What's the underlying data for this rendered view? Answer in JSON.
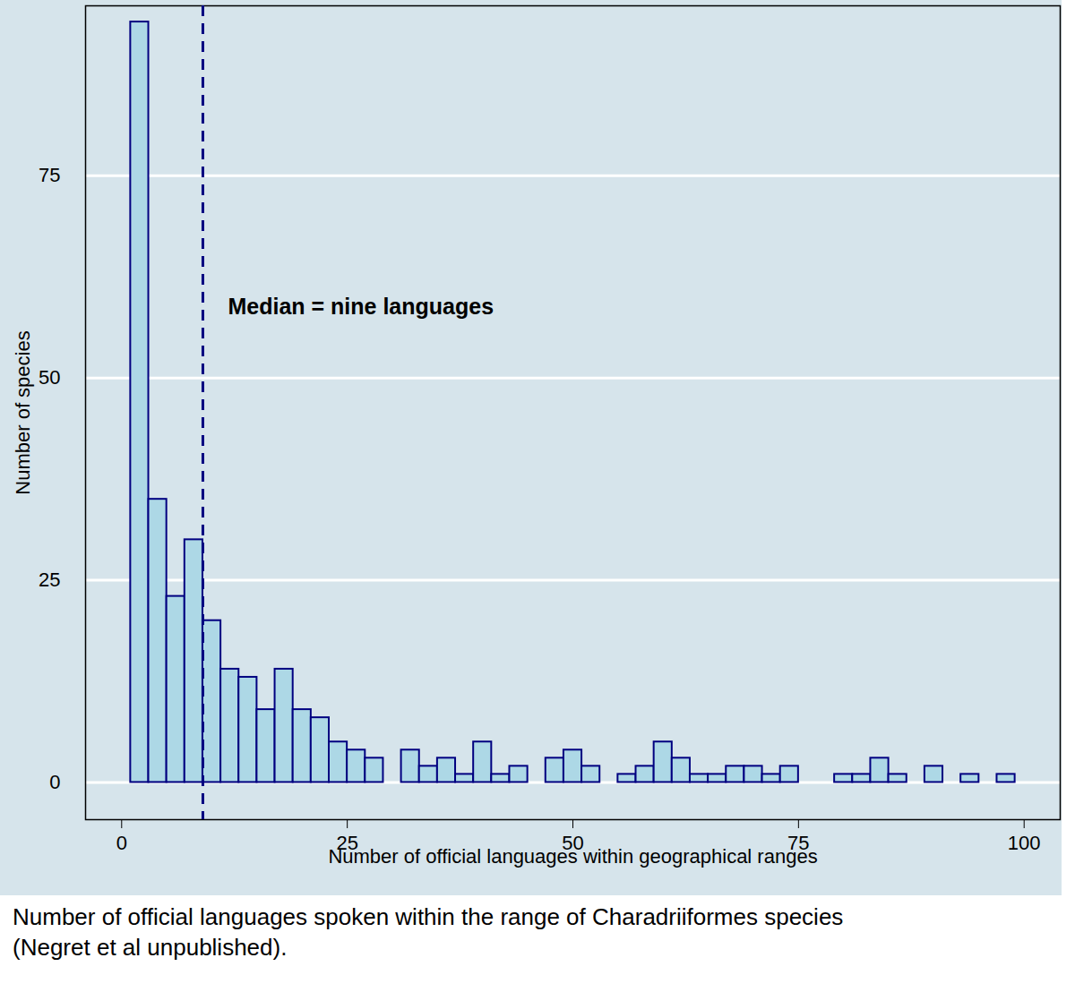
{
  "chart_data": {
    "type": "histogram",
    "caption": "Number of official languages spoken within the range of Charadriiformes species\n(Negret et al unpublished).",
    "x_label": "Number of official languages within geographical ranges",
    "y_label": "Number of species",
    "bins": [
      1,
      3,
      5,
      7,
      9,
      11,
      13,
      15,
      17,
      19,
      21,
      23,
      25,
      27,
      29,
      31,
      33,
      35,
      37,
      39,
      41,
      43,
      45,
      47,
      49,
      51,
      53,
      55,
      57,
      59,
      61,
      63,
      65,
      67,
      69,
      71,
      73,
      75,
      77,
      79,
      81,
      83,
      85,
      87,
      89,
      91,
      93,
      95,
      97,
      99
    ],
    "values": [
      94,
      35,
      23,
      30,
      20,
      14,
      13,
      9,
      14,
      9,
      8,
      5,
      4,
      3,
      0,
      4,
      2,
      3,
      1,
      5,
      1,
      2,
      0,
      3,
      4,
      2,
      0,
      1,
      2,
      5,
      3,
      1,
      1,
      2,
      2,
      1,
      2,
      0,
      0,
      1,
      1,
      3,
      1,
      0,
      2,
      0,
      1,
      0,
      1
    ],
    "color": "#add8e6",
    "annotations": [
      {
        "text": "Median = nine languages",
        "x": 9
      }
    ],
    "xlim": [
      -4,
      104
    ],
    "xticks": [
      0,
      25,
      50,
      75,
      100
    ],
    "ylim": [
      -4.6,
      96
    ],
    "yticks": [
      0,
      25,
      50,
      75
    ],
    "grid": true
  }
}
